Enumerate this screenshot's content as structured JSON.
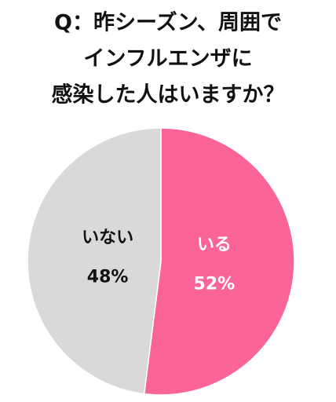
{
  "chart_data": {
    "type": "pie",
    "title": [
      "Q：昨シーズン、周囲で",
      "インフルエンザに",
      "感染した人はいますか？"
    ],
    "categories": [
      "いる",
      "いない"
    ],
    "values": [
      52,
      48
    ],
    "value_labels": [
      "52%",
      "48%"
    ],
    "colors": [
      "#fb6595",
      "#d9d9d9"
    ],
    "label_colors": [
      "#ffffff",
      "#111111"
    ]
  }
}
